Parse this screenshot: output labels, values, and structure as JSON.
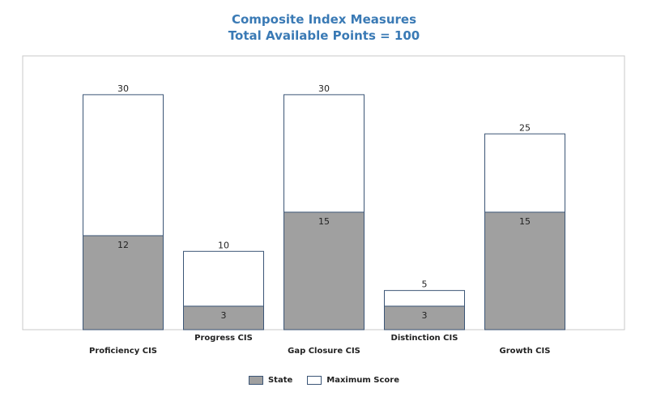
{
  "chart_data": {
    "type": "bar",
    "title": "Composite Index Measures",
    "subtitle": "Total Available Points = 100",
    "categories": [
      "Proficiency CIS",
      "Progress CIS",
      "Gap Closure CIS",
      "Distinction CIS",
      "Growth CIS"
    ],
    "series": [
      {
        "name": "State",
        "values": [
          12,
          3,
          15,
          3,
          15
        ],
        "color": "#a0a0a0"
      },
      {
        "name": "Maximum Score",
        "values": [
          30,
          10,
          30,
          5,
          25
        ],
        "color": "#ffffff"
      }
    ],
    "ylim": [
      0,
      30
    ],
    "grid": false,
    "legend_position": "bottom",
    "bar_border_color": "#3b5576",
    "frame_color": "#c8c8c8"
  }
}
